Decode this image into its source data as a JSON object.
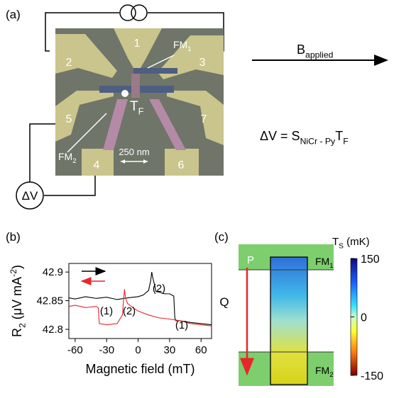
{
  "panel_labels": {
    "a": "(a)",
    "b": "(b)",
    "c": "(c)"
  },
  "panel_a": {
    "contacts": [
      "1",
      "2",
      "3",
      "4",
      "5",
      "6",
      "7"
    ],
    "fm1": {
      "text": "FM",
      "sub": "1"
    },
    "fm2": {
      "text": "FM",
      "sub": "2"
    },
    "tf": {
      "text": "T",
      "sub": "F"
    },
    "scale_bar": "250 nm",
    "voltmeter": "ΔV",
    "field": {
      "text": "B",
      "sub": "applied"
    },
    "equation": {
      "lhs": "ΔV = S",
      "sub1": "NiCr - Py",
      "t": "T",
      "sub2": "F"
    }
  },
  "chart_data": {
    "type": "line",
    "xlabel": "Magnetic field (mT)",
    "ylabel": {
      "text": "R",
      "sub": "2",
      "unit": " (μV mA",
      "sup": "-2",
      "close": ")"
    },
    "xlim": [
      -66,
      70
    ],
    "xticks": [
      -60,
      -30,
      0,
      30,
      60
    ],
    "ylim": [
      42.784,
      42.915
    ],
    "yticks": [
      42.9,
      42.85,
      42.8
    ],
    "series": [
      {
        "color": "#000000",
        "x": [
          -66,
          -60,
          -50,
          -40,
          -30,
          -20,
          -10,
          0,
          5,
          10,
          12,
          13,
          14,
          16,
          17,
          20,
          25,
          30,
          34,
          35,
          36,
          40,
          50,
          60,
          70
        ],
        "values": [
          42.855,
          42.853,
          42.857,
          42.854,
          42.856,
          42.852,
          42.855,
          42.857,
          42.86,
          42.868,
          42.885,
          42.9,
          42.89,
          42.875,
          42.866,
          42.865,
          42.862,
          42.862,
          42.858,
          42.82,
          42.815,
          42.815,
          42.812,
          42.81,
          42.808
        ]
      },
      {
        "color": "#e8262b",
        "x": [
          -66,
          -60,
          -50,
          -40,
          -38,
          -37,
          -30,
          -20,
          -15,
          -13,
          -12,
          -10,
          -5,
          0,
          10,
          20,
          30,
          40,
          50,
          60,
          70
        ],
        "values": [
          42.84,
          42.842,
          42.838,
          42.84,
          42.838,
          42.81,
          42.808,
          42.81,
          42.825,
          42.87,
          42.855,
          42.845,
          42.838,
          42.832,
          42.825,
          42.82,
          42.818,
          42.815,
          42.81,
          42.808,
          42.806
        ]
      }
    ],
    "annotations": [
      {
        "text": "(2)",
        "color": "#000000"
      },
      {
        "text": "(1)",
        "color": "#000000"
      },
      {
        "text": "(1)",
        "color": "#e8262b"
      },
      {
        "text": "(2)",
        "color": "#e8262b"
      }
    ]
  },
  "panel_c": {
    "p": "P",
    "fm1": {
      "text": "FM",
      "sub": "1"
    },
    "fm2": {
      "text": "FM",
      "sub": "2"
    },
    "q": "Q",
    "colorbar": {
      "label": {
        "text": "T",
        "sub": "S",
        "unit": " (mK)"
      },
      "lim": [
        -150,
        150
      ],
      "ticks": [
        150,
        0,
        -150
      ]
    }
  }
}
